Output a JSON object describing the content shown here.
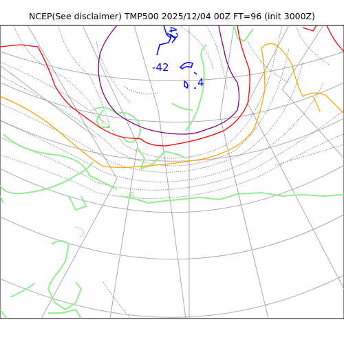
{
  "title": "NCEP(See disclaimer) TMP500 2025/12/04 00Z FT=96 (init 3000Z)",
  "colors": {
    "coastline": "#90ee90",
    "graticule": "#aaaaaa",
    "isotherm": "#666666",
    "blue_contour": "#0000ff",
    "red_contour": "#ff0000",
    "purple_contour": "#800080",
    "orange_contour": "#ffa500"
  },
  "contour_labels": [
    {
      "name": "label-minus-42",
      "text": "-42",
      "color": "#0000ff"
    },
    {
      "name": "label-4",
      "text": "4",
      "color": "#0000ff"
    },
    {
      "name": "label-42-rotated",
      "text": "42",
      "color": "#0000ff"
    },
    {
      "name": "label-6",
      "text": "-6",
      "color": "#90ee90"
    }
  ]
}
